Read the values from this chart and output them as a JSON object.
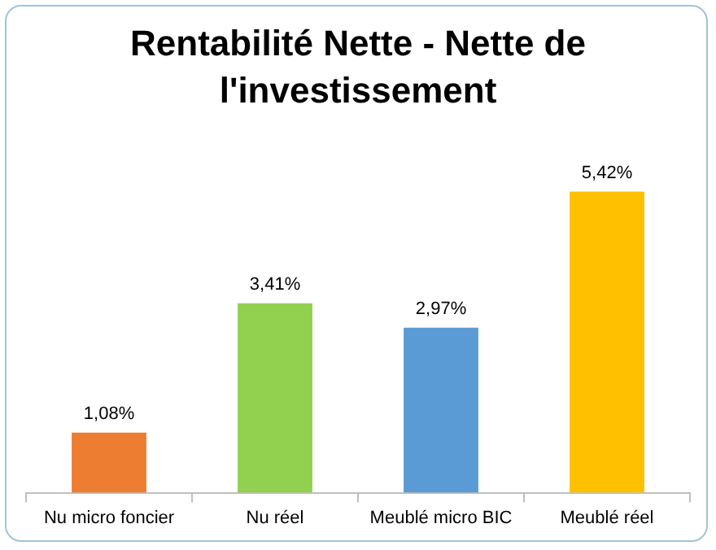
{
  "chart_data": {
    "type": "bar",
    "title": "Rentabilité Nette - Nette de l'investissement",
    "categories": [
      "Nu micro foncier",
      "Nu réel",
      "Meublé micro BIC",
      "Meublé réel"
    ],
    "values": [
      1.08,
      3.41,
      2.97,
      5.42
    ],
    "colors": [
      "#ed7d31",
      "#92d050",
      "#5b9bd5",
      "#ffc000"
    ],
    "value_labels": [
      "1,08%",
      "3,41%",
      "2,97%",
      "5,42%"
    ],
    "tick_labels": "x",
    "grid": false,
    "legend": false
  }
}
